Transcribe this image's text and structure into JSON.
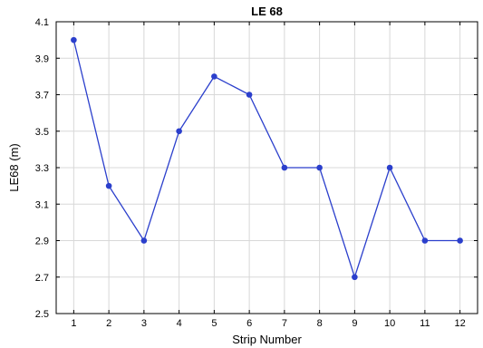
{
  "chart_data": {
    "type": "line",
    "title": "LE 68",
    "xlabel": "Strip Number",
    "ylabel": "LE68 (m)",
    "x": [
      1,
      2,
      3,
      4,
      5,
      6,
      7,
      8,
      9,
      10,
      11,
      12
    ],
    "xticks": [
      "1",
      "2",
      "3",
      "4",
      "5",
      "6",
      "7",
      "8",
      "9",
      "10",
      "11",
      "12"
    ],
    "xlim": [
      0.5,
      12.5
    ],
    "ylim": [
      2.5,
      4.1
    ],
    "yticks": [
      "2.5",
      "2.7",
      "2.9",
      "3.1",
      "3.3",
      "3.5",
      "3.7",
      "3.9",
      "4.1"
    ],
    "series": [
      {
        "values": [
          4.0,
          3.2,
          2.9,
          3.5,
          3.8,
          3.7,
          3.3,
          3.3,
          2.7,
          3.3,
          2.9,
          2.9
        ]
      }
    ],
    "grid": true,
    "colors": {
      "series": "#2b3fcc",
      "grid": "#d8d8d8"
    }
  }
}
